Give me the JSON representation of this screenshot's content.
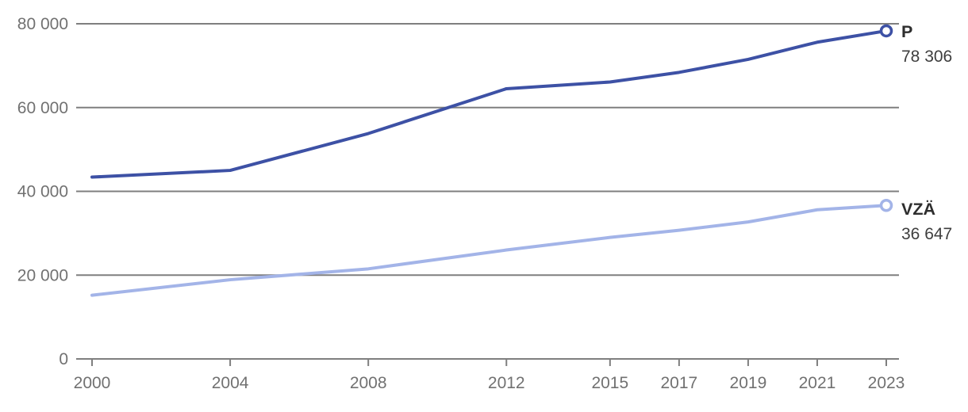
{
  "chart_data": {
    "type": "line",
    "title": "",
    "xlabel": "",
    "ylabel": "",
    "xlim": [
      2000,
      2023
    ],
    "ylim": [
      0,
      80000
    ],
    "grid": "horizontal",
    "legend_position": "end-of-line-labels-right",
    "x": [
      2000,
      2004,
      2008,
      2012,
      2015,
      2017,
      2019,
      2021,
      2023
    ],
    "x_ticks": [
      2000,
      2004,
      2008,
      2012,
      2015,
      2017,
      2019,
      2021,
      2023
    ],
    "x_tick_labels": [
      "2000",
      "2004",
      "2008",
      "2012",
      "2015",
      "2017",
      "2019",
      "2021",
      "2023"
    ],
    "y_ticks": [
      0,
      20000,
      40000,
      60000,
      80000
    ],
    "y_tick_labels": [
      "0",
      "20 000",
      "40 000",
      "60 000",
      "80 000"
    ],
    "series": [
      {
        "name": "P",
        "values": [
          43400,
          45000,
          53800,
          64500,
          66100,
          68400,
          71500,
          75600,
          78306
        ],
        "end_value": 78306,
        "value_label": "78 306",
        "color": "#3d51a5"
      },
      {
        "name": "VZÄ",
        "values": [
          15200,
          18900,
          21500,
          26000,
          29000,
          30700,
          32700,
          35600,
          36647
        ],
        "end_value": 36647,
        "value_label": "36 647",
        "color": "#a3b4e8"
      }
    ],
    "marker": "open-circle-at-line-end",
    "colors": {
      "grid": "#7f7f7f",
      "tick_label": "#717171",
      "series_label": "#2e2e2e",
      "value_label": "#3e3e3e",
      "marker_fill": "#ffffff",
      "background": "#ffffff"
    }
  }
}
